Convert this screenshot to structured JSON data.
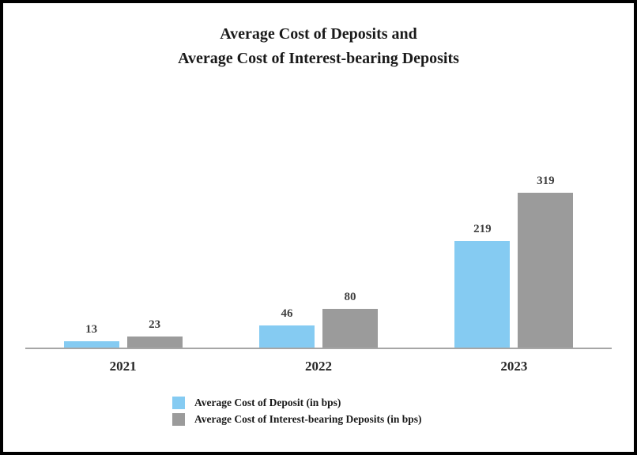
{
  "title": {
    "line1": "Average Cost of Deposits and",
    "line2": "Average Cost of Interest-bearing Deposits"
  },
  "chart_data": {
    "type": "bar",
    "title": "Average Cost of Deposits and Average Cost of Interest-bearing Deposits",
    "categories": [
      "2021",
      "2022",
      "2023"
    ],
    "series": [
      {
        "name": "Average Cost of Deposit (in bps)",
        "color": "#85CBF2",
        "values": [
          13,
          46,
          219
        ]
      },
      {
        "name": "Average Cost of Interest-bearing Deposits (in bps)",
        "color": "#9B9B9B",
        "values": [
          23,
          80,
          319
        ]
      }
    ],
    "xlabel": "",
    "ylabel": "",
    "ylim": [
      0,
      340
    ],
    "grid": false,
    "legend_position": "bottom-left",
    "data_labels": true,
    "colors": {
      "axis_line": "#a6a6a6",
      "label_text": "#404040"
    }
  }
}
